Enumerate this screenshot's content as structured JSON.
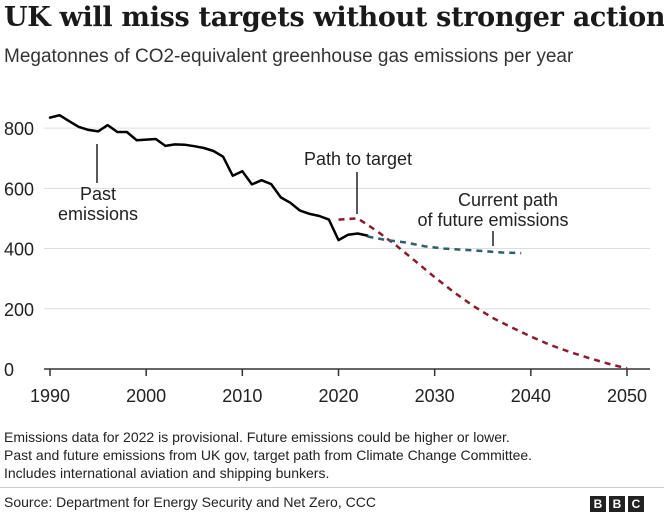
{
  "header": {
    "title": "UK will miss targets without stronger action",
    "subtitle": "Megatonnes of CO2-equivalent greenhouse gas emissions per year"
  },
  "chart_data": {
    "type": "line",
    "xlim": [
      1990,
      2050
    ],
    "ylim": [
      0,
      900
    ],
    "x_ticks": [
      1990,
      2000,
      2010,
      2020,
      2030,
      2040,
      2050
    ],
    "y_ticks": [
      0,
      200,
      400,
      600,
      800
    ],
    "grid": "horizontal",
    "legend": "none",
    "series": [
      {
        "name": "Past emissions",
        "style": "solid",
        "color": "#000000",
        "points": [
          [
            1990,
            835
          ],
          [
            1991,
            843
          ],
          [
            1992,
            823
          ],
          [
            1993,
            804
          ],
          [
            1994,
            794
          ],
          [
            1995,
            789
          ],
          [
            1996,
            810
          ],
          [
            1997,
            787
          ],
          [
            1998,
            787
          ],
          [
            1999,
            760
          ],
          [
            2000,
            762
          ],
          [
            2001,
            764
          ],
          [
            2002,
            741
          ],
          [
            2003,
            746
          ],
          [
            2004,
            745
          ],
          [
            2005,
            740
          ],
          [
            2006,
            734
          ],
          [
            2007,
            724
          ],
          [
            2008,
            705
          ],
          [
            2009,
            642
          ],
          [
            2010,
            657
          ],
          [
            2011,
            613
          ],
          [
            2012,
            627
          ],
          [
            2013,
            614
          ],
          [
            2014,
            570
          ],
          [
            2015,
            552
          ],
          [
            2016,
            526
          ],
          [
            2017,
            515
          ],
          [
            2018,
            508
          ],
          [
            2019,
            496
          ],
          [
            2020,
            428
          ],
          [
            2021,
            446
          ],
          [
            2022,
            450
          ],
          [
            2023,
            443
          ]
        ]
      },
      {
        "name": "Path to target",
        "style": "dashed",
        "color": "#8b1c2b",
        "points": [
          [
            2020,
            496
          ],
          [
            2022,
            500
          ],
          [
            2024,
            458
          ],
          [
            2026,
            410
          ],
          [
            2028,
            358
          ],
          [
            2030,
            305
          ],
          [
            2032,
            255
          ],
          [
            2034,
            210
          ],
          [
            2036,
            170
          ],
          [
            2038,
            138
          ],
          [
            2040,
            108
          ],
          [
            2042,
            80
          ],
          [
            2044,
            57
          ],
          [
            2046,
            37
          ],
          [
            2048,
            18
          ],
          [
            2050,
            2
          ]
        ]
      },
      {
        "name": "Current path of future emissions",
        "style": "dashed",
        "color": "#2e5d6b",
        "points": [
          [
            2023,
            440
          ],
          [
            2025,
            428
          ],
          [
            2027,
            420
          ],
          [
            2029,
            407
          ],
          [
            2031,
            400
          ],
          [
            2033,
            396
          ],
          [
            2035,
            392
          ],
          [
            2037,
            387
          ],
          [
            2039,
            385
          ]
        ]
      }
    ],
    "annotations": [
      {
        "id": "past",
        "lines": [
          "Past",
          "emissions"
        ],
        "x": 1995,
        "y": 575
      },
      {
        "id": "target",
        "lines": [
          "Path to target"
        ],
        "x": 2022,
        "y": 700
      },
      {
        "id": "current",
        "lines": [
          "Current path",
          "of future emissions"
        ],
        "x": 2036,
        "y": 545
      }
    ]
  },
  "notes": [
    "Emissions data for 2022 is provisional. Future emissions could be higher or lower.",
    "Past and future emissions from UK gov, target path from Climate Change Committee.",
    "Includes international aviation and shipping bunkers."
  ],
  "footer": {
    "source": "Source: Department for Energy Security and Net Zero, CCC",
    "logo_letters": [
      "B",
      "B",
      "C"
    ]
  }
}
